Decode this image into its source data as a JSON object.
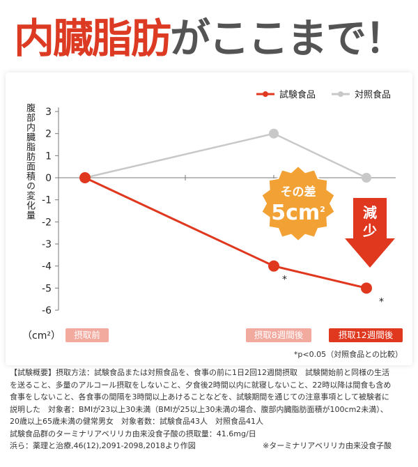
{
  "headline": {
    "part1": "内臓脂肪",
    "part2": "がここまで！"
  },
  "colors": {
    "test": "#e0381f",
    "control": "#c8c8c8",
    "accent": "#f2a134",
    "pale_red": "#f2a99e"
  },
  "chart_data": {
    "type": "line",
    "x": [
      "摂取前",
      "摂取8週間後",
      "摂取12週間後"
    ],
    "series": [
      {
        "name": "試験食品",
        "values": [
          0,
          -4,
          -5
        ],
        "color": "#e0381f"
      },
      {
        "name": "対照食品",
        "values": [
          0,
          2,
          0
        ],
        "color": "#c8c8c8"
      }
    ],
    "ylabel": "腹部内臓脂肪面積の変化量",
    "unit": "（cm²）",
    "ylim": [
      -6,
      3
    ],
    "yticks": [
      "3",
      "2",
      "1",
      "0",
      "-1",
      "-2",
      "-3",
      "-4",
      "-5",
      "-6"
    ],
    "xlabels": [
      "摂取前",
      "摂取8週間後",
      "摂取12週間後"
    ],
    "significance_marks": [
      "*",
      "*"
    ],
    "note": "*p<0.05（対照食品との比較）",
    "legend": [
      "試験食品",
      "対照食品"
    ],
    "legend_position": "top-right",
    "badge": {
      "line1": "その差",
      "value": "5cm",
      "sup": "2"
    },
    "arrow_label": [
      "減",
      "少"
    ]
  },
  "description": {
    "lines": [
      "【試験概要】摂取方法：試験食品または対照食品を、食事の前に1日2回12週間摂取　試験開始前と同様の生活",
      "を送ること、多量のアルコール摂取をしないこと、夕食後2時間以内に就寝しないこと、22時以降は間食も含め",
      "食事をしないこと、各食事の間隔を3時間以上あけることなどを、試験期間を通じての注意事項として被験者に",
      "説明した　対象者：BMIが23以上30未満（BMIが25以上30未満の場合、腹部内臓脂肪面積が100cm2未満）、",
      "20歳以上65歳未満の健常男女　対象者数：試験食品43人　対照食品41人",
      "試験食品群のターミナリアベリリカ由来没食子酸の摂取量：41.6mg/日"
    ],
    "source": "浜ら：薬理と治療,46(12),2091-2098,2018より作図",
    "footnote": "※ターミナリアベリリカ由来没食子酸"
  }
}
